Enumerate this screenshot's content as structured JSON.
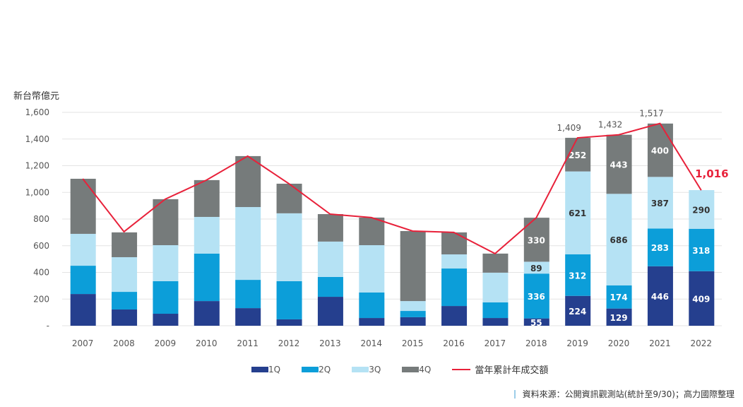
{
  "chart_data": {
    "type": "bar",
    "ylabel": "新台幣億元",
    "ylim": [
      0,
      1600
    ],
    "yticks": [
      0,
      200,
      400,
      600,
      800,
      1000,
      1200,
      1400,
      1600
    ],
    "ytick_labels": [
      "-",
      "200",
      "400",
      "600",
      "800",
      "1,000",
      "1,200",
      "1,400",
      "1,600"
    ],
    "grid": true,
    "legend_position": "bottom",
    "categories": [
      "2007",
      "2008",
      "2009",
      "2010",
      "2011",
      "2012",
      "2013",
      "2014",
      "2015",
      "2016",
      "2017",
      "2018",
      "2019",
      "2020",
      "2021",
      "2022"
    ],
    "series": [
      {
        "name": "1Q",
        "color": "#253f8e",
        "values": [
          238,
          122,
          90,
          185,
          132,
          48,
          217,
          58,
          64,
          148,
          58,
          55,
          224,
          129,
          446,
          409
        ],
        "labeled_from": 11
      },
      {
        "name": "2Q",
        "color": "#0c9ed9",
        "values": [
          212,
          132,
          244,
          356,
          212,
          286,
          149,
          191,
          47,
          281,
          117,
          336,
          312,
          174,
          283,
          318
        ],
        "labeled_from": 11
      },
      {
        "name": "3Q",
        "color": "#b5e2f4",
        "values": [
          239,
          260,
          270,
          275,
          546,
          509,
          265,
          355,
          74,
          106,
          223,
          89,
          621,
          686,
          387,
          290
        ],
        "labeled_from": 11
      },
      {
        "name": "4Q",
        "color": "#767b7b",
        "values": [
          413,
          186,
          345,
          276,
          382,
          222,
          206,
          207,
          525,
          165,
          143,
          330,
          252,
          443,
          400,
          null
        ],
        "labeled_from": 11
      }
    ],
    "line": {
      "name": "當年累計年成交額",
      "color": "#e8213a",
      "values": [
        1102,
        705,
        949,
        1092,
        1272,
        1065,
        837,
        811,
        710,
        700,
        541,
        810,
        1409,
        1432,
        1517,
        1016
      ]
    },
    "total_labels": [
      {
        "category": "2019",
        "text": "1,409"
      },
      {
        "category": "2020",
        "text": "1,432"
      },
      {
        "category": "2021",
        "text": "1,517"
      },
      {
        "category": "2022",
        "text": "1,016",
        "highlight": true
      }
    ]
  },
  "source": "資料來源：公開資訊觀測站(統計至9/30)；高力國際整理"
}
